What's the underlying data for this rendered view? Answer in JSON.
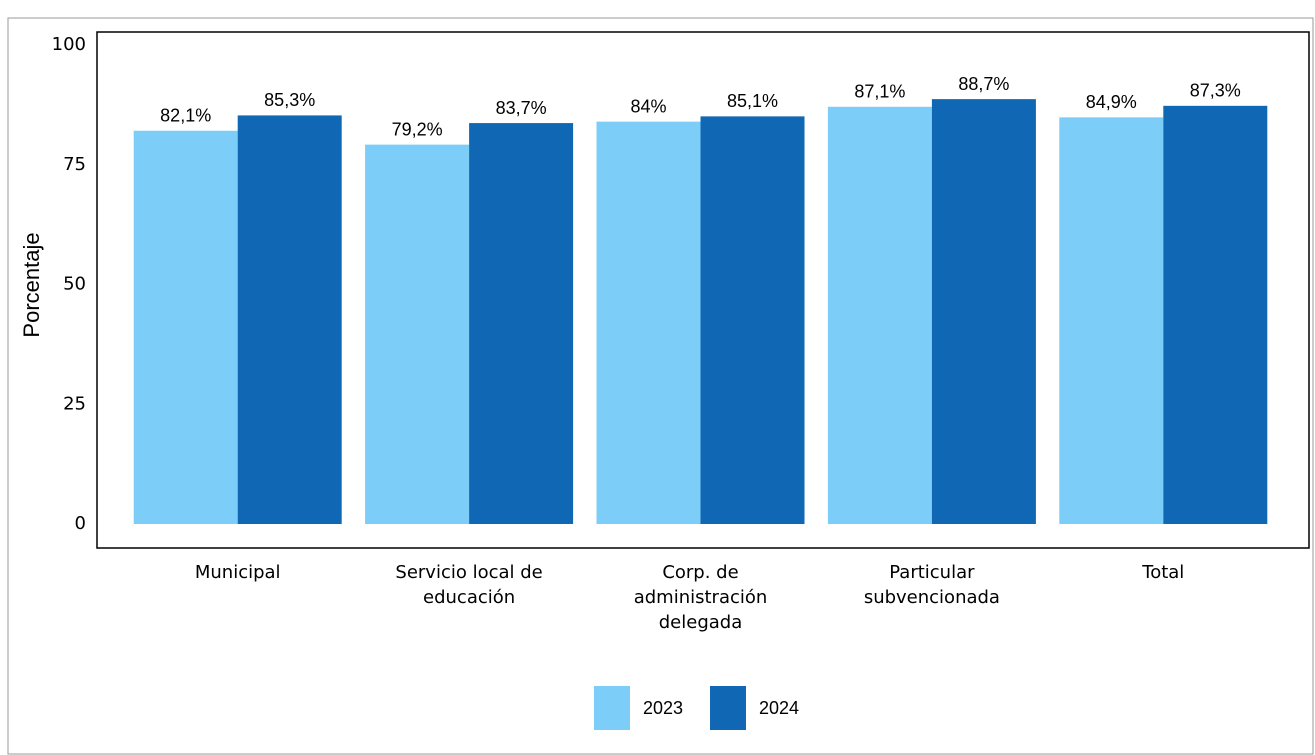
{
  "chart_data": {
    "type": "bar",
    "ylabel": "Porcentaje",
    "categories": [
      [
        "Municipal"
      ],
      [
        "Servicio local de",
        "educación"
      ],
      [
        "Corp. de",
        "administración",
        "delegada"
      ],
      [
        "Particular",
        "subvencionada"
      ],
      [
        "Total"
      ]
    ],
    "series": [
      {
        "name": "2023",
        "color": "#7ccdf7",
        "values": [
          82.1,
          79.2,
          84,
          87.1,
          84.9
        ],
        "value_labels": [
          "82,1%",
          "79,2%",
          "84%",
          "87,1%",
          "84,9%"
        ]
      },
      {
        "name": "2024",
        "color": "#1068b4",
        "values": [
          85.3,
          83.7,
          85.1,
          88.7,
          87.3
        ],
        "value_labels": [
          "85,3%",
          "83,7%",
          "85,1%",
          "88,7%",
          "87,3%"
        ]
      }
    ],
    "ylim": [
      0,
      100
    ],
    "yticks": [
      0,
      25,
      50,
      75,
      100
    ],
    "legend": "bottom"
  }
}
